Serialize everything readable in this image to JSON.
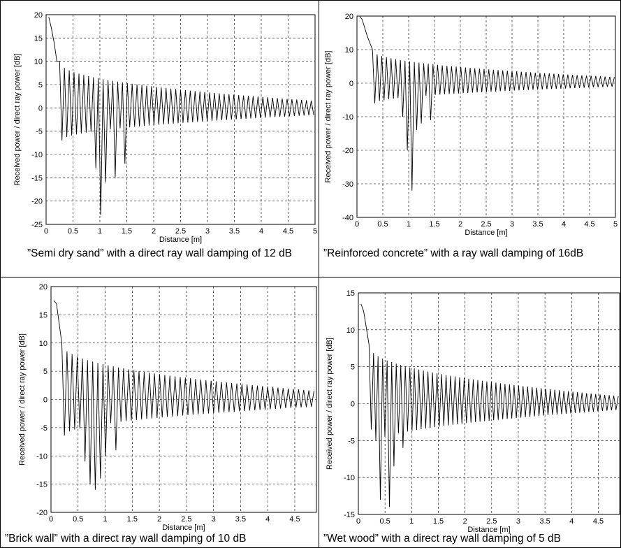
{
  "chart_data": [
    {
      "type": "line",
      "xlabel": "Distance [m]",
      "ylabel": "Received power / direct ray power [dB]",
      "xlim": [
        0,
        5
      ],
      "ylim": [
        -25,
        20
      ],
      "xticks": [
        "0",
        "0.5",
        "1",
        "1.5",
        "2",
        "2.5",
        "3",
        "3.5",
        "4",
        "4.5",
        "5"
      ],
      "yticks": [
        "20",
        "15",
        "10",
        "5",
        "0",
        "-5",
        "-10",
        "-15",
        "-20",
        "-25"
      ],
      "grid": true,
      "caption": "”Semi dry sand” with a direct ray wall damping of 12 dB",
      "series": [
        {
          "x": [
            0.05,
            0.1,
            0.15,
            0.2,
            0.25,
            0.3,
            0.35,
            0.4,
            0.45,
            0.5,
            0.55,
            0.6,
            0.7,
            0.8,
            0.9,
            1.0,
            1.1,
            1.2,
            1.3,
            1.5,
            2.0,
            2.5,
            3.0,
            3.5,
            4.0,
            4.5,
            5.0
          ],
          "y": [
            19.5,
            17,
            14,
            10,
            12,
            10,
            4,
            10,
            8,
            2,
            -1.5,
            8,
            -8,
            6,
            -13,
            -23,
            5,
            -15,
            5,
            -10,
            -6,
            -3,
            -2,
            -2,
            -1.5,
            -1.5,
            -1.5
          ]
        }
      ],
      "envelope": {
        "upper_start": 10,
        "upper_end": 1.5,
        "lower_end": -1.5,
        "period": 0.09,
        "x_start": 0.25,
        "deep_dips": [
          [
            0.95,
            -13
          ],
          [
            1.03,
            -23
          ],
          [
            1.13,
            -16
          ],
          [
            1.27,
            -15
          ],
          [
            1.45,
            -12
          ]
        ]
      }
    },
    {
      "type": "line",
      "xlabel": "Distance [m]",
      "ylabel": "Received power / direct ray power [dB]",
      "xlim": [
        0,
        5
      ],
      "ylim": [
        -40,
        20
      ],
      "xticks": [
        "0",
        "0.5",
        "1",
        "1.5",
        "2",
        "2.5",
        "3",
        "3.5",
        "4",
        "4.5",
        "5"
      ],
      "yticks": [
        "20",
        "10",
        "0",
        "-10",
        "-20",
        "-30",
        "-40"
      ],
      "grid": true,
      "caption": "”Reinforced concrete” with a ray wall damping of 16dB",
      "series": [
        {
          "x": [
            0.05,
            0.1,
            0.2,
            0.3,
            0.45,
            0.6,
            0.8,
            0.9,
            1.03,
            1.1,
            1.2,
            1.4,
            2.0,
            3.0,
            4.0,
            5.0
          ],
          "y": [
            20,
            19,
            14,
            12,
            8,
            -1,
            -7,
            -10,
            -32,
            -20,
            -14,
            -11,
            -5,
            -2.5,
            -1.5,
            -1
          ]
        }
      ],
      "envelope": {
        "upper_start": 10,
        "upper_end": 1.8,
        "lower_end": -1.0,
        "period": 0.09,
        "x_start": 0.3,
        "deep_dips": [
          [
            0.88,
            -10
          ],
          [
            0.98,
            -20
          ],
          [
            1.03,
            -32
          ],
          [
            1.12,
            -14
          ],
          [
            1.27,
            -12
          ],
          [
            1.42,
            -11
          ]
        ]
      }
    },
    {
      "type": "line",
      "xlabel": "Distance [m]",
      "ylabel": "Received power / direct ray power [dB]",
      "xlim": [
        0,
        4.9
      ],
      "ylim": [
        -20,
        20
      ],
      "xticks": [
        "0",
        "0.5",
        "1",
        "1.5",
        "2",
        "2.5",
        "3",
        "3.5",
        "4",
        "4.5"
      ],
      "yticks": [
        "20",
        "15",
        "10",
        "5",
        "0",
        "-5",
        "-10",
        "-15",
        "-20"
      ],
      "grid": true,
      "caption": "”Brick wall” with a direct ray wall damping of 10 dB",
      "series": [
        {
          "x": [
            0.05,
            0.1,
            0.2,
            0.3,
            0.4,
            0.5,
            0.6,
            0.7,
            0.8,
            0.9,
            1.0,
            1.1,
            1.3,
            2.0,
            3.0,
            4.0,
            4.9
          ],
          "y": [
            17.5,
            17,
            14,
            10,
            0,
            9,
            -6,
            -11,
            -15,
            -16,
            -14,
            -11,
            -9,
            -4,
            -2,
            -1.5,
            -1.5
          ]
        }
      ],
      "envelope": {
        "upper_start": 10,
        "upper_end": 1.5,
        "lower_end": -1.2,
        "period": 0.095,
        "x_start": 0.2,
        "deep_dips": [
          [
            0.62,
            -11
          ],
          [
            0.72,
            -15
          ],
          [
            0.82,
            -16
          ],
          [
            0.92,
            -14
          ],
          [
            1.05,
            -10
          ],
          [
            1.2,
            -9
          ]
        ]
      }
    },
    {
      "type": "line",
      "xlabel": "Distance [m]",
      "ylabel": "Received power / direct ray power [dB]",
      "xlim": [
        0,
        4.9
      ],
      "ylim": [
        -15,
        15
      ],
      "xticks": [
        "0",
        "0.5",
        "1",
        "1.5",
        "2",
        "2.5",
        "3",
        "3.5",
        "4",
        "4.5"
      ],
      "yticks": [
        "15",
        "10",
        "5",
        "0",
        "-5",
        "-10",
        "-15"
      ],
      "grid": true,
      "caption": "”Wet wood” with a direct ray wall damping of 5 dB",
      "series": [
        {
          "x": [
            0.05,
            0.1,
            0.2,
            0.3,
            0.4,
            0.45,
            0.55,
            0.6,
            0.7,
            0.8,
            1.0,
            1.5,
            2.0,
            3.0,
            4.0,
            4.9
          ],
          "y": [
            13.5,
            12.5,
            10.5,
            -3.5,
            7,
            -13,
            -14,
            -8.5,
            -6,
            -5,
            -3,
            -2,
            -1.5,
            -1,
            -1,
            -1
          ]
        }
      ],
      "envelope": {
        "upper_start": 8,
        "upper_end": 1.0,
        "lower_end": -0.8,
        "period": 0.085,
        "x_start": 0.2,
        "deep_dips": [
          [
            0.28,
            -3.5
          ],
          [
            0.45,
            -13
          ],
          [
            0.55,
            -14
          ],
          [
            0.68,
            -8.5
          ],
          [
            0.8,
            -6
          ]
        ]
      }
    }
  ]
}
